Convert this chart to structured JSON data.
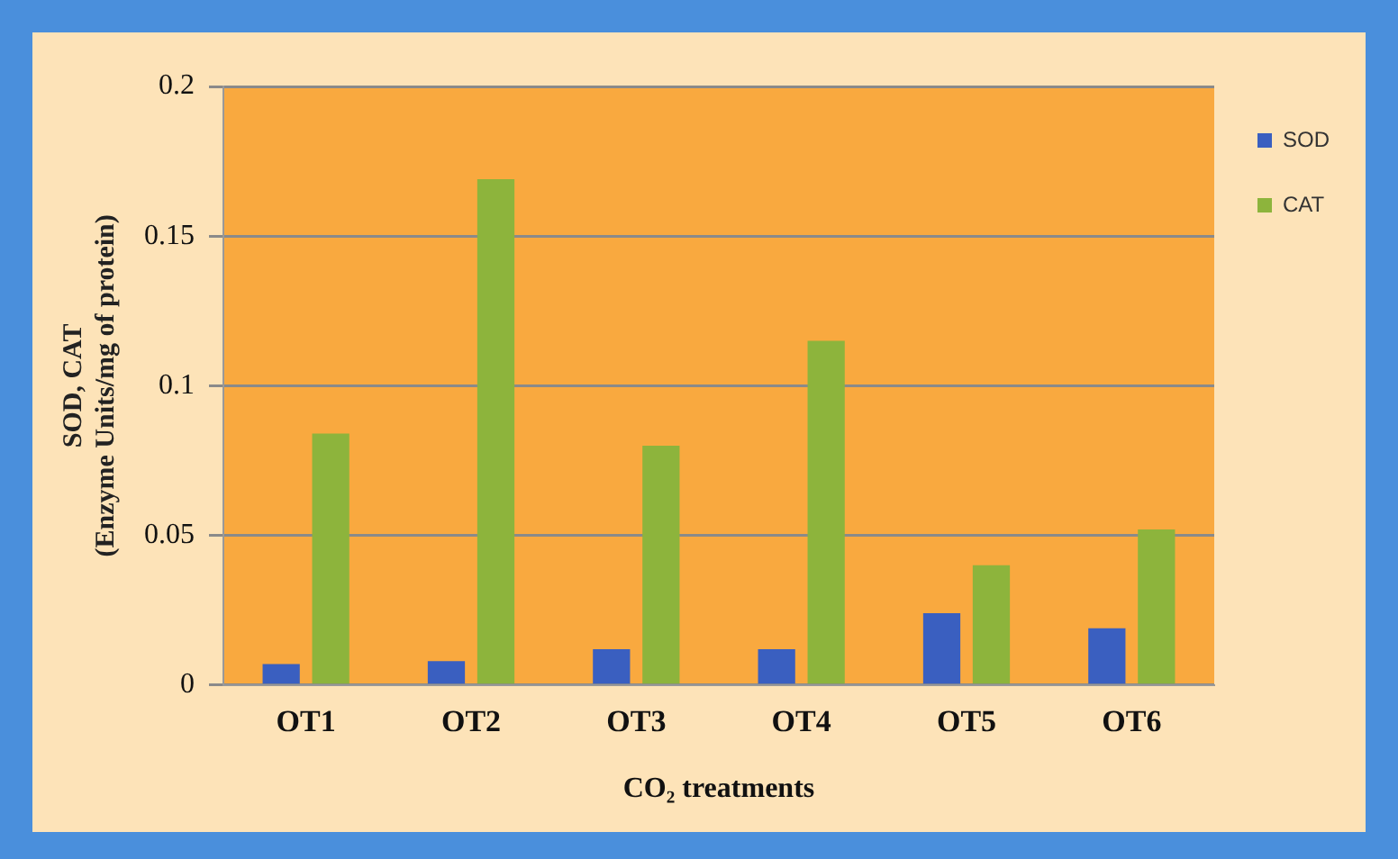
{
  "chart_data": {
    "type": "bar",
    "xlabel": "CO₂ treatments",
    "ylabel": "SOD, CAT\n(Enzyme Units/mg of protein)",
    "categories": [
      "OT1",
      "OT2",
      "OT3",
      "OT4",
      "OT5",
      "OT6"
    ],
    "series": [
      {
        "name": "SOD",
        "color": "#3a5fc0",
        "values": [
          0.007,
          0.008,
          0.012,
          0.012,
          0.024,
          0.019
        ]
      },
      {
        "name": "CAT",
        "color": "#8db43c",
        "values": [
          0.084,
          0.169,
          0.08,
          0.115,
          0.04,
          0.052
        ]
      }
    ],
    "ylim": [
      0,
      0.2
    ],
    "yticks": [
      0,
      0.05,
      0.1,
      0.15,
      0.2
    ],
    "grid": "y",
    "legend": "top right"
  }
}
